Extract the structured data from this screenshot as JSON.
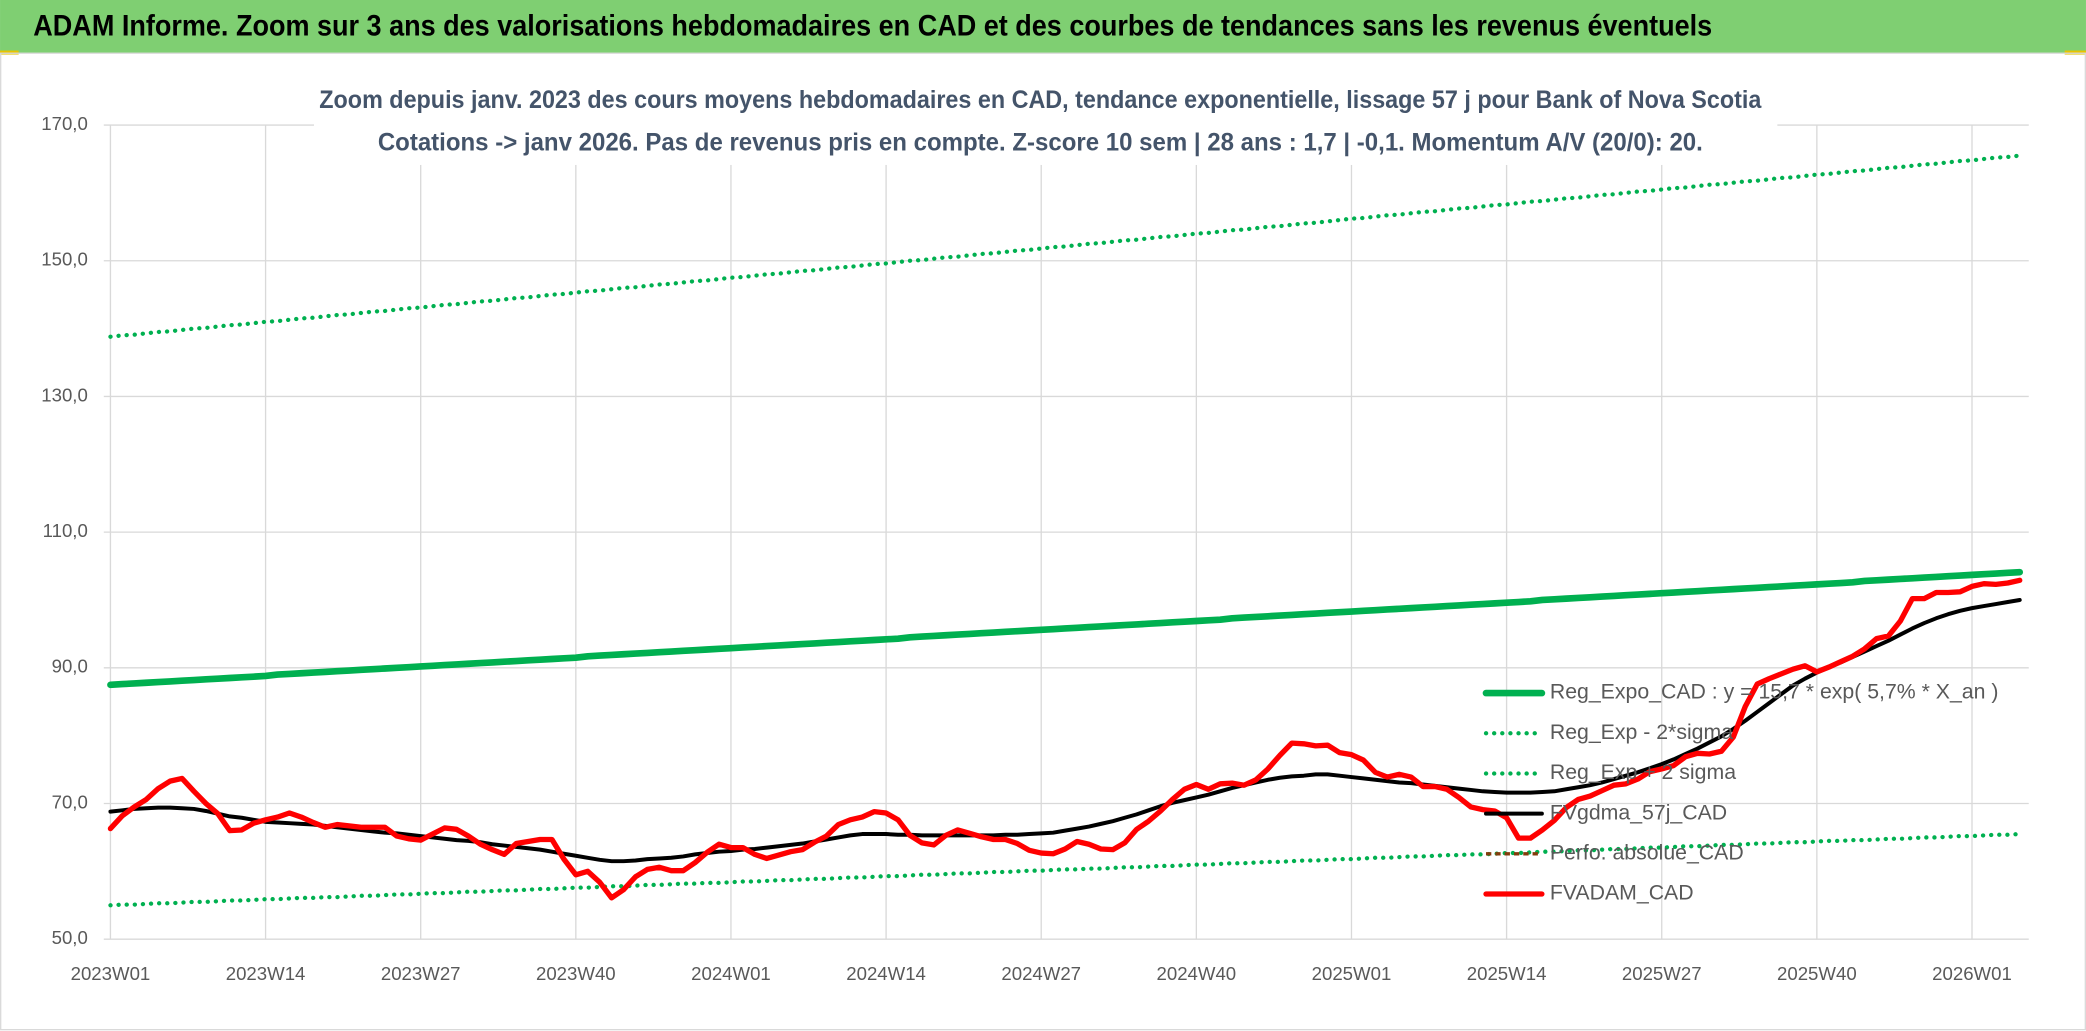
{
  "header": {
    "title": "ADAM Informe. Zoom sur 3 ans des valorisations hebdomadaires en CAD et des courbes de tendances sans les revenus éventuels"
  },
  "chart_data": {
    "type": "line",
    "title": "Zoom depuis janv. 2023 des cours moyens hebdomadaires en CAD, tendance exponentielle, lissage 57 j pour Bank of Nova Scotia",
    "subtitle": "Cotations -> janv 2026. Pas de revenus pris en compte. Z-score 10 sem | 28 ans : 1,7 | -0,1. Momentum A/V (20/0): 20.",
    "ylim": [
      50,
      170
    ],
    "yticks": [
      {
        "value": 50,
        "label": "50,0"
      },
      {
        "value": 70,
        "label": "70,0"
      },
      {
        "value": 90,
        "label": "90,0"
      },
      {
        "value": 110,
        "label": "110,0"
      },
      {
        "value": 130,
        "label": "130,0"
      },
      {
        "value": 150,
        "label": "150,0"
      },
      {
        "value": 170,
        "label": "170,0"
      }
    ],
    "grid": true,
    "legend": "right",
    "categories": [
      "2023W01",
      null,
      null,
      null,
      null,
      null,
      null,
      null,
      null,
      null,
      null,
      null,
      null,
      "2023W14",
      null,
      null,
      null,
      null,
      null,
      null,
      null,
      null,
      null,
      null,
      null,
      null,
      "2023W27",
      null,
      null,
      null,
      null,
      null,
      null,
      null,
      null,
      null,
      null,
      null,
      null,
      "2023W40",
      null,
      null,
      null,
      null,
      null,
      null,
      null,
      null,
      null,
      null,
      null,
      null,
      "2024W01",
      null,
      null,
      null,
      null,
      null,
      null,
      null,
      null,
      null,
      null,
      null,
      null,
      "2024W14",
      null,
      null,
      null,
      null,
      null,
      null,
      null,
      null,
      null,
      null,
      null,
      null,
      "2024W27",
      null,
      null,
      null,
      null,
      null,
      null,
      null,
      null,
      null,
      null,
      null,
      null,
      "2024W40",
      null,
      null,
      null,
      null,
      null,
      null,
      null,
      null,
      null,
      null,
      null,
      null,
      "2025W01",
      null,
      null,
      null,
      null,
      null,
      null,
      null,
      null,
      null,
      null,
      null,
      null,
      "2025W14",
      null,
      null,
      null,
      null,
      null,
      null,
      null,
      null,
      null,
      null,
      null,
      null,
      "2025W27",
      null,
      null,
      null,
      null,
      null,
      null,
      null,
      null,
      null,
      null,
      null,
      null,
      "2025W40",
      null,
      null,
      null,
      null,
      null,
      null,
      null,
      null,
      null,
      null,
      null,
      null,
      "2026W01",
      null,
      null,
      null,
      null
    ],
    "series": [
      {
        "name": "Reg_Expo_CAD : y = 15,7 * exp( 5,7% *  X_an )",
        "color": "#00b050",
        "style": "solid",
        "values": [
          87.5,
          87.6,
          87.7,
          87.8,
          87.9,
          88.0,
          88.1,
          88.2,
          88.3,
          88.4,
          88.5,
          88.6,
          88.7,
          88.8,
          89.0,
          89.1,
          89.2,
          89.3,
          89.4,
          89.5,
          89.6,
          89.7,
          89.8,
          89.9,
          90.0,
          90.1,
          90.2,
          90.3,
          90.4,
          90.5,
          90.6,
          90.7,
          90.8,
          90.9,
          91.0,
          91.1,
          91.2,
          91.3,
          91.4,
          91.5,
          91.7,
          91.8,
          91.9,
          92.0,
          92.1,
          92.2,
          92.3,
          92.4,
          92.5,
          92.6,
          92.7,
          92.8,
          92.9,
          93.0,
          93.1,
          93.2,
          93.3,
          93.4,
          93.5,
          93.6,
          93.7,
          93.8,
          93.9,
          94.0,
          94.1,
          94.2,
          94.3,
          94.5,
          94.6,
          94.7,
          94.8,
          94.9,
          95.0,
          95.1,
          95.2,
          95.3,
          95.4,
          95.5,
          95.6,
          95.7,
          95.8,
          95.9,
          96.0,
          96.1,
          96.2,
          96.3,
          96.4,
          96.5,
          96.6,
          96.7,
          96.8,
          96.9,
          97.0,
          97.1,
          97.3,
          97.4,
          97.5,
          97.6,
          97.7,
          97.8,
          97.9,
          98.0,
          98.1,
          98.2,
          98.3,
          98.4,
          98.5,
          98.6,
          98.7,
          98.8,
          98.9,
          99.0,
          99.1,
          99.2,
          99.3,
          99.4,
          99.5,
          99.6,
          99.7,
          99.8,
          100.0,
          100.1,
          100.2,
          100.3,
          100.4,
          100.5,
          100.6,
          100.7,
          100.8,
          100.9,
          101.0,
          101.1,
          101.2,
          101.3,
          101.4,
          101.5,
          101.6,
          101.7,
          101.8,
          101.9,
          102.0,
          102.1,
          102.2,
          102.3,
          102.4,
          102.5,
          102.6,
          102.8,
          102.9,
          103.0,
          103.1,
          103.2,
          103.3,
          103.4,
          103.5,
          103.6,
          103.7,
          103.8,
          103.9,
          104.0,
          104.1
        ]
      },
      {
        "name": "Reg_Exp - 2*sigma",
        "color": "#00b050",
        "style": "dotted",
        "values": [
          55.0,
          55.1,
          55.1,
          55.2,
          55.3,
          55.3,
          55.4,
          55.5,
          55.5,
          55.6,
          55.7,
          55.7,
          55.8,
          55.9,
          55.9,
          56.0,
          56.1,
          56.1,
          56.2,
          56.2,
          56.3,
          56.4,
          56.4,
          56.5,
          56.6,
          56.6,
          56.7,
          56.8,
          56.8,
          56.9,
          57.0,
          57.0,
          57.1,
          57.2,
          57.2,
          57.3,
          57.4,
          57.4,
          57.5,
          57.6,
          57.6,
          57.7,
          57.8,
          57.8,
          57.9,
          58.0,
          58.0,
          58.1,
          58.2,
          58.2,
          58.3,
          58.3,
          58.4,
          58.5,
          58.5,
          58.6,
          58.7,
          58.7,
          58.8,
          58.9,
          58.9,
          59.0,
          59.1,
          59.1,
          59.2,
          59.3,
          59.3,
          59.4,
          59.5,
          59.5,
          59.6,
          59.7,
          59.7,
          59.8,
          59.9,
          59.9,
          60.0,
          60.1,
          60.1,
          60.2,
          60.3,
          60.3,
          60.4,
          60.4,
          60.5,
          60.6,
          60.6,
          60.7,
          60.8,
          60.8,
          60.9,
          61.0,
          61.0,
          61.1,
          61.2,
          61.2,
          61.3,
          61.4,
          61.4,
          61.5,
          61.6,
          61.6,
          61.7,
          61.8,
          61.8,
          61.9,
          62.0,
          62.0,
          62.1,
          62.2,
          62.2,
          62.3,
          62.4,
          62.4,
          62.5,
          62.5,
          62.6,
          62.7,
          62.7,
          62.8,
          62.9,
          62.9,
          63.0,
          63.1,
          63.1,
          63.2,
          63.3,
          63.3,
          63.4,
          63.5,
          63.5,
          63.6,
          63.7,
          63.7,
          63.8,
          63.9,
          63.9,
          64.0,
          64.1,
          64.1,
          64.2,
          64.3,
          64.3,
          64.4,
          64.5,
          64.5,
          64.6,
          64.6,
          64.7,
          64.8,
          64.8,
          64.9,
          65.0,
          65.0,
          65.1,
          65.2,
          65.2,
          65.3,
          65.4,
          65.4,
          65.5
        ]
      },
      {
        "name": "Reg_Exp + 2 sigma",
        "color": "#00b050",
        "style": "dotted",
        "values": [
          138.8,
          139.0,
          139.1,
          139.3,
          139.5,
          139.6,
          139.8,
          140.0,
          140.1,
          140.3,
          140.5,
          140.6,
          140.8,
          141.0,
          141.1,
          141.3,
          141.5,
          141.6,
          141.8,
          142.0,
          142.1,
          142.3,
          142.5,
          142.6,
          142.8,
          143.0,
          143.1,
          143.3,
          143.5,
          143.6,
          143.8,
          144.0,
          144.1,
          144.3,
          144.5,
          144.6,
          144.8,
          145.0,
          145.1,
          145.3,
          145.5,
          145.6,
          145.8,
          146.0,
          146.1,
          146.3,
          146.5,
          146.6,
          146.8,
          147.0,
          147.1,
          147.3,
          147.5,
          147.6,
          147.8,
          148.0,
          148.1,
          148.3,
          148.5,
          148.6,
          148.8,
          149.0,
          149.1,
          149.3,
          149.5,
          149.6,
          149.8,
          150.0,
          150.1,
          150.3,
          150.5,
          150.6,
          150.8,
          151.0,
          151.1,
          151.3,
          151.5,
          151.6,
          151.8,
          152.0,
          152.1,
          152.3,
          152.5,
          152.6,
          152.8,
          153.0,
          153.1,
          153.3,
          153.5,
          153.6,
          153.8,
          154.0,
          154.1,
          154.3,
          154.5,
          154.6,
          154.8,
          155.0,
          155.1,
          155.3,
          155.5,
          155.6,
          155.8,
          156.0,
          156.2,
          156.3,
          156.5,
          156.7,
          156.8,
          157.0,
          157.2,
          157.3,
          157.5,
          157.7,
          157.8,
          158.0,
          158.2,
          158.3,
          158.5,
          158.7,
          158.8,
          159.0,
          159.2,
          159.3,
          159.5,
          159.7,
          159.8,
          160.0,
          160.2,
          160.3,
          160.5,
          160.7,
          160.8,
          161.0,
          161.2,
          161.3,
          161.5,
          161.7,
          161.8,
          162.0,
          162.2,
          162.3,
          162.5,
          162.7,
          162.8,
          163.0,
          163.2,
          163.3,
          163.5,
          163.7,
          163.8,
          164.0,
          164.2,
          164.3,
          164.5,
          164.7,
          164.8,
          165.0,
          165.2,
          165.3,
          165.5
        ]
      },
      {
        "name": "FVgdma_57j_CAD",
        "color": "#000000",
        "style": "solid",
        "values": [
          68.8,
          69.0,
          69.2,
          69.3,
          69.4,
          69.4,
          69.3,
          69.2,
          68.9,
          68.5,
          68.1,
          67.9,
          67.6,
          67.3,
          67.2,
          67.1,
          67.0,
          66.9,
          66.7,
          66.5,
          66.3,
          66.1,
          65.9,
          65.7,
          65.6,
          65.4,
          65.2,
          65.0,
          64.8,
          64.6,
          64.5,
          64.3,
          64.0,
          63.8,
          63.6,
          63.4,
          63.2,
          62.9,
          62.6,
          62.3,
          62.0,
          61.7,
          61.5,
          61.5,
          61.6,
          61.8,
          61.9,
          62.0,
          62.2,
          62.5,
          62.7,
          62.9,
          63.0,
          63.2,
          63.3,
          63.5,
          63.7,
          63.9,
          64.1,
          64.4,
          64.7,
          65.0,
          65.3,
          65.5,
          65.5,
          65.5,
          65.4,
          65.4,
          65.3,
          65.3,
          65.3,
          65.3,
          65.3,
          65.3,
          65.3,
          65.4,
          65.4,
          65.5,
          65.6,
          65.7,
          66.0,
          66.3,
          66.6,
          67.0,
          67.4,
          67.9,
          68.4,
          69.0,
          69.6,
          70.1,
          70.5,
          70.9,
          71.3,
          71.8,
          72.3,
          72.7,
          73.1,
          73.5,
          73.8,
          74.0,
          74.1,
          74.3,
          74.3,
          74.1,
          73.9,
          73.7,
          73.5,
          73.3,
          73.1,
          73.0,
          72.8,
          72.6,
          72.4,
          72.2,
          72.0,
          71.8,
          71.7,
          71.6,
          71.6,
          71.6,
          71.7,
          71.8,
          72.1,
          72.4,
          72.7,
          73.1,
          73.6,
          74.1,
          74.6,
          75.2,
          75.8,
          76.5,
          77.3,
          78.1,
          79.0,
          79.9,
          81.0,
          82.2,
          83.5,
          84.8,
          86.1,
          87.4,
          88.4,
          89.3,
          90.1,
          90.8,
          91.6,
          92.4,
          93.2,
          94.0,
          94.9,
          95.8,
          96.6,
          97.3,
          97.9,
          98.4,
          98.8,
          99.1,
          99.4,
          99.7,
          100.0
        ]
      },
      {
        "name": "Perfo. absolue_CAD",
        "color": "#843c0c",
        "style": "dashed",
        "values": [
          null,
          null,
          null,
          null,
          null,
          null,
          null,
          null,
          null,
          null,
          null,
          null,
          null,
          null,
          null,
          null,
          null,
          null,
          null,
          null,
          null,
          null,
          null,
          null,
          null,
          null,
          null,
          null,
          null,
          null,
          null,
          null,
          null,
          null,
          null,
          null,
          null,
          null,
          null,
          null,
          null,
          null,
          null,
          null,
          null,
          null,
          null,
          null,
          null,
          null,
          null,
          null,
          null,
          null,
          null,
          null,
          null,
          null,
          null,
          null,
          null,
          null,
          null,
          null,
          null,
          null,
          null,
          null,
          null,
          null,
          null,
          null,
          null,
          null,
          null,
          null,
          null,
          null,
          null,
          null,
          null,
          null,
          null,
          null,
          null,
          null,
          null,
          null,
          null,
          null,
          null,
          null,
          null,
          null,
          null,
          null,
          null,
          null,
          null,
          null,
          null,
          null,
          null,
          null,
          null,
          null,
          null,
          null,
          null,
          null,
          null,
          null,
          null,
          null,
          null,
          null,
          null,
          null,
          null,
          null,
          null,
          null,
          null,
          null,
          null,
          null,
          null,
          null,
          null,
          null,
          null,
          null,
          null,
          null,
          null,
          null,
          null,
          null,
          null,
          null,
          null,
          null,
          null,
          null,
          null,
          null,
          null,
          null,
          null,
          null,
          null,
          null,
          null,
          null,
          null,
          null,
          null,
          null,
          null,
          null,
          null
        ]
      },
      {
        "name": "FVADAM_CAD",
        "color": "#ff0000",
        "style": "solid",
        "values": [
          66.3,
          68.2,
          69.5,
          70.6,
          72.2,
          73.3,
          73.7,
          71.8,
          70.0,
          68.5,
          66.0,
          66.1,
          67.1,
          67.6,
          68.0,
          68.6,
          68.0,
          67.2,
          66.5,
          66.9,
          66.7,
          66.5,
          66.5,
          66.5,
          65.2,
          64.8,
          64.6,
          65.5,
          66.4,
          66.2,
          65.2,
          64.0,
          63.2,
          62.5,
          64.1,
          64.4,
          64.7,
          64.7,
          61.8,
          59.5,
          60.0,
          58.4,
          56.1,
          57.3,
          59.2,
          60.3,
          60.6,
          60.1,
          60.1,
          61.3,
          62.8,
          64.0,
          63.5,
          63.5,
          62.5,
          61.9,
          62.4,
          62.9,
          63.2,
          64.3,
          65.2,
          66.9,
          67.6,
          68.0,
          68.8,
          68.6,
          67.6,
          65.3,
          64.2,
          63.9,
          65.3,
          66.1,
          65.6,
          65.1,
          64.7,
          64.7,
          64.1,
          63.1,
          62.7,
          62.6,
          63.3,
          64.4,
          64.0,
          63.3,
          63.2,
          64.2,
          66.2,
          67.4,
          68.9,
          70.6,
          72.1,
          72.8,
          72.1,
          72.9,
          73.0,
          72.7,
          73.5,
          75.1,
          77.1,
          78.9,
          78.8,
          78.5,
          78.6,
          77.5,
          77.2,
          76.4,
          74.6,
          73.9,
          74.3,
          73.9,
          72.5,
          72.5,
          72.1,
          70.9,
          69.5,
          69.1,
          68.9,
          67.9,
          64.9,
          64.9,
          66.1,
          67.5,
          69.4,
          70.6,
          71.1,
          71.9,
          72.7,
          72.9,
          73.6,
          74.7,
          75.1,
          75.6,
          76.9,
          77.4,
          77.3,
          77.7,
          79.8,
          84.3,
          87.6,
          88.4,
          89.1,
          89.8,
          90.3,
          89.4,
          90.1,
          90.9,
          91.7,
          92.8,
          94.3,
          94.7,
          96.9,
          100.2,
          100.2,
          101.1,
          101.1,
          101.2,
          102.0,
          102.4,
          102.3,
          102.5,
          102.9
        ]
      }
    ]
  }
}
